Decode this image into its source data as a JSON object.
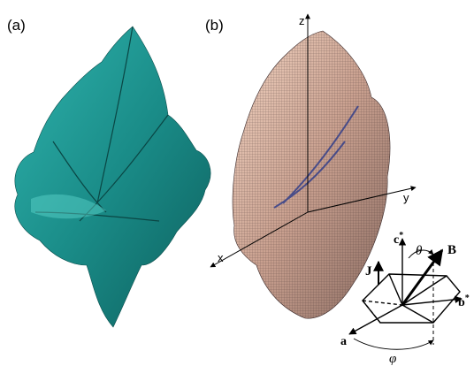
{
  "panels": [
    {
      "label": "(a)"
    },
    {
      "label": "(b)"
    }
  ],
  "axes": {
    "z": "z",
    "y": "y",
    "x": "x"
  },
  "inset": {
    "c": "c",
    "c_sup": "*",
    "theta": "θ",
    "B": "B",
    "J": "J",
    "b": "b",
    "b_sup": "*",
    "a": "a",
    "phi": "φ"
  }
}
